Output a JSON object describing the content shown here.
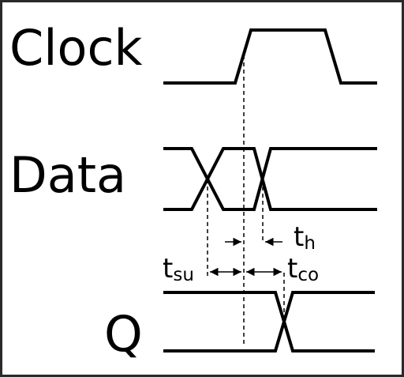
{
  "signals": {
    "clock": "Clock",
    "data": "Data",
    "q": "Q"
  },
  "timing": {
    "th": {
      "main": "t",
      "sub": "h"
    },
    "tsu": {
      "main": "t",
      "sub": "su"
    },
    "tco": {
      "main": "t",
      "sub": "co"
    }
  }
}
